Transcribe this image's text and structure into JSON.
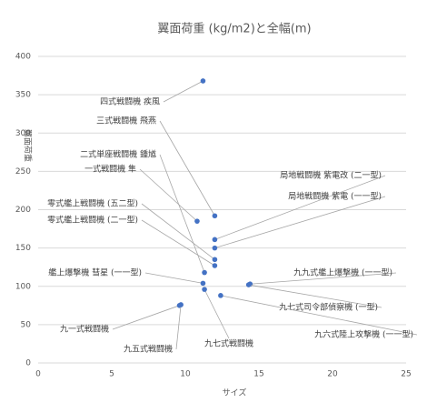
{
  "chart_data": {
    "type": "scatter",
    "title": "翼面荷重 (kg/m2)と全幅(m)",
    "xlabel": "サイズ",
    "ylabel": "翼面荷重",
    "series": [
      {
        "color": "#4472c4",
        "point_labels": [
          "四式戦闘機 疾風",
          "三式戦闘機 飛燕",
          "二式単座戦闘機 鍾馗",
          "一式戦闘機 隼",
          "零式艦上戦闘機 (五二型)",
          "零式艦上戦闘機 (二一型)",
          "艦上爆撃機 彗星 (一一型)",
          "九一式戦闘機",
          "九五式戦闘機",
          "九七式戦闘機",
          "局地戦闘機 紫電改 (二一型)",
          "局地戦闘機 紫電 (一一型)",
          "九九式艦上爆撃機 (一一型)",
          "九七式司令部偵察機 (一型)",
          "九六式陸上攻撃機 (一一型)"
        ],
        "x": [
          11.2,
          12.0,
          11.3,
          10.8,
          12.0,
          12.0,
          11.2,
          9.6,
          9.7,
          11.3,
          12.0,
          12.0,
          14.4,
          14.3,
          12.4
        ],
        "values": [
          368,
          192,
          118,
          185,
          135,
          127,
          104,
          75,
          76,
          96,
          161,
          150,
          103,
          102,
          88
        ]
      }
    ],
    "xlim": [
      0,
      25
    ],
    "xticks": [
      0,
      5,
      10,
      15,
      20,
      25
    ],
    "ylim": [
      0,
      400
    ],
    "yticks": [
      0,
      50,
      100,
      150,
      200,
      250,
      300,
      350,
      400
    ],
    "grid": true
  }
}
